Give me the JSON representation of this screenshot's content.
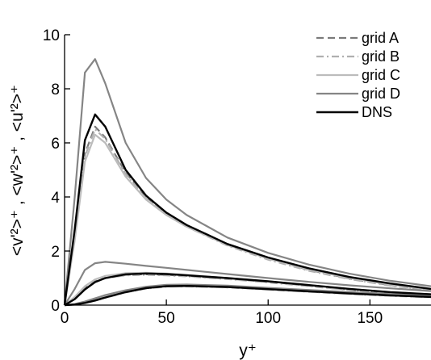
{
  "chart_data": {
    "type": "line",
    "xlabel": "y⁺",
    "ylabel": "<v'²>⁺ , <w'²>⁺ , <u'²>⁺",
    "xlim": [
      0,
      180
    ],
    "ylim": [
      0,
      10
    ],
    "xticks": [
      {
        "value": 0,
        "label": "0"
      },
      {
        "value": 50,
        "label": "50"
      },
      {
        "value": 100,
        "label": "100"
      },
      {
        "value": 150,
        "label": "150"
      }
    ],
    "yticks": [
      {
        "value": 0,
        "label": "0"
      },
      {
        "value": 2,
        "label": "2"
      },
      {
        "value": 4,
        "label": "4"
      },
      {
        "value": 6,
        "label": "6"
      },
      {
        "value": 8,
        "label": "8"
      },
      {
        "value": 10,
        "label": "10"
      }
    ],
    "grid": false,
    "legend_position": "top-right",
    "series": [
      {
        "name": "grid A",
        "color": "#7a7a7a",
        "dash": "dashed",
        "curves": [
          {
            "x": [
              0,
              5,
              10,
              15,
              20,
              30,
              40,
              50,
              60,
              80,
              100,
              120,
              140,
              160,
              180
            ],
            "y": [
              0,
              2.6,
              5.6,
              6.6,
              6.2,
              4.9,
              4.0,
              3.4,
              2.95,
              2.25,
              1.72,
              1.3,
              0.98,
              0.74,
              0.56
            ]
          },
          {
            "x": [
              0,
              5,
              10,
              15,
              20,
              30,
              40,
              50,
              60,
              80,
              100,
              120,
              140,
              160,
              180
            ],
            "y": [
              0,
              0.25,
              0.62,
              0.88,
              1.0,
              1.12,
              1.14,
              1.12,
              1.08,
              0.98,
              0.86,
              0.72,
              0.57,
              0.46,
              0.38
            ]
          },
          {
            "x": [
              0,
              5,
              10,
              15,
              20,
              30,
              40,
              50,
              60,
              80,
              100,
              120,
              140,
              160,
              180
            ],
            "y": [
              0,
              0.02,
              0.08,
              0.17,
              0.28,
              0.48,
              0.62,
              0.69,
              0.7,
              0.66,
              0.58,
              0.5,
              0.42,
              0.35,
              0.3
            ]
          }
        ]
      },
      {
        "name": "grid B",
        "color": "#b0b0b0",
        "dash": "dashdot",
        "curves": [
          {
            "x": [
              0,
              5,
              10,
              15,
              20,
              30,
              40,
              50,
              60,
              80,
              100,
              120,
              140,
              160,
              180
            ],
            "y": [
              0,
              2.5,
              5.5,
              6.5,
              6.15,
              4.85,
              3.95,
              3.35,
              2.9,
              2.2,
              1.68,
              1.27,
              0.96,
              0.72,
              0.55
            ]
          },
          {
            "x": [
              0,
              5,
              10,
              15,
              20,
              30,
              40,
              50,
              60,
              80,
              100,
              120,
              140,
              160,
              180
            ],
            "y": [
              0,
              0.24,
              0.6,
              0.86,
              0.99,
              1.1,
              1.12,
              1.1,
              1.06,
              0.96,
              0.84,
              0.7,
              0.56,
              0.45,
              0.37
            ]
          },
          {
            "x": [
              0,
              5,
              10,
              15,
              20,
              30,
              40,
              50,
              60,
              80,
              100,
              120,
              140,
              160,
              180
            ],
            "y": [
              0,
              0.02,
              0.08,
              0.16,
              0.27,
              0.47,
              0.61,
              0.68,
              0.69,
              0.65,
              0.57,
              0.49,
              0.41,
              0.34,
              0.29
            ]
          }
        ]
      },
      {
        "name": "grid C",
        "color": "#bcbcbc",
        "dash": "solid",
        "curves": [
          {
            "x": [
              0,
              5,
              10,
              15,
              20,
              30,
              40,
              50,
              60,
              80,
              100,
              120,
              140,
              160,
              180
            ],
            "y": [
              0,
              2.4,
              5.3,
              6.3,
              6.0,
              4.75,
              3.9,
              3.33,
              2.9,
              2.22,
              1.72,
              1.32,
              1.0,
              0.76,
              0.58
            ]
          },
          {
            "x": [
              0,
              5,
              10,
              15,
              20,
              30,
              40,
              50,
              60,
              80,
              100,
              120,
              140,
              160,
              180
            ],
            "y": [
              0,
              0.3,
              0.7,
              0.95,
              1.08,
              1.18,
              1.2,
              1.17,
              1.12,
              1.0,
              0.88,
              0.74,
              0.6,
              0.48,
              0.4
            ]
          },
          {
            "x": [
              0,
              5,
              10,
              15,
              20,
              30,
              40,
              50,
              60,
              80,
              100,
              120,
              140,
              160,
              180
            ],
            "y": [
              0,
              0.03,
              0.1,
              0.2,
              0.31,
              0.51,
              0.64,
              0.71,
              0.72,
              0.68,
              0.6,
              0.52,
              0.44,
              0.37,
              0.31
            ]
          }
        ]
      },
      {
        "name": "grid D",
        "color": "#858585",
        "dash": "solid",
        "curves": [
          {
            "x": [
              0,
              5,
              10,
              15,
              20,
              30,
              40,
              50,
              60,
              80,
              100,
              120,
              140,
              160,
              180
            ],
            "y": [
              0,
              4.0,
              8.6,
              9.1,
              8.2,
              6.0,
              4.7,
              3.9,
              3.33,
              2.5,
              1.93,
              1.5,
              1.16,
              0.9,
              0.7
            ]
          },
          {
            "x": [
              0,
              5,
              10,
              15,
              20,
              30,
              40,
              50,
              60,
              80,
              100,
              120,
              140,
              160,
              180
            ],
            "y": [
              0,
              0.6,
              1.3,
              1.55,
              1.6,
              1.53,
              1.45,
              1.38,
              1.3,
              1.15,
              1.0,
              0.86,
              0.73,
              0.62,
              0.52
            ]
          },
          {
            "x": [
              0,
              5,
              10,
              15,
              20,
              30,
              40,
              50,
              60,
              80,
              100,
              120,
              140,
              160,
              180
            ],
            "y": [
              0,
              0.04,
              0.13,
              0.25,
              0.37,
              0.55,
              0.68,
              0.75,
              0.76,
              0.72,
              0.64,
              0.56,
              0.48,
              0.41,
              0.35
            ]
          }
        ]
      },
      {
        "name": "DNS",
        "color": "#000000",
        "dash": "solid",
        "curves": [
          {
            "x": [
              0,
              5,
              10,
              15,
              20,
              30,
              40,
              50,
              60,
              80,
              100,
              120,
              140,
              160,
              180
            ],
            "y": [
              0,
              2.8,
              6.1,
              7.05,
              6.6,
              5.0,
              4.05,
              3.42,
              2.96,
              2.26,
              1.76,
              1.36,
              1.04,
              0.8,
              0.6
            ]
          },
          {
            "x": [
              0,
              5,
              10,
              15,
              20,
              30,
              40,
              50,
              60,
              80,
              100,
              120,
              140,
              160,
              180
            ],
            "y": [
              0,
              0.22,
              0.58,
              0.85,
              1.0,
              1.14,
              1.17,
              1.15,
              1.1,
              1.0,
              0.88,
              0.74,
              0.6,
              0.48,
              0.4
            ]
          },
          {
            "x": [
              0,
              5,
              10,
              15,
              20,
              30,
              40,
              50,
              60,
              80,
              100,
              120,
              140,
              160,
              180
            ],
            "y": [
              0,
              0.02,
              0.08,
              0.17,
              0.28,
              0.48,
              0.63,
              0.7,
              0.71,
              0.67,
              0.59,
              0.51,
              0.43,
              0.36,
              0.3
            ]
          }
        ]
      }
    ]
  }
}
